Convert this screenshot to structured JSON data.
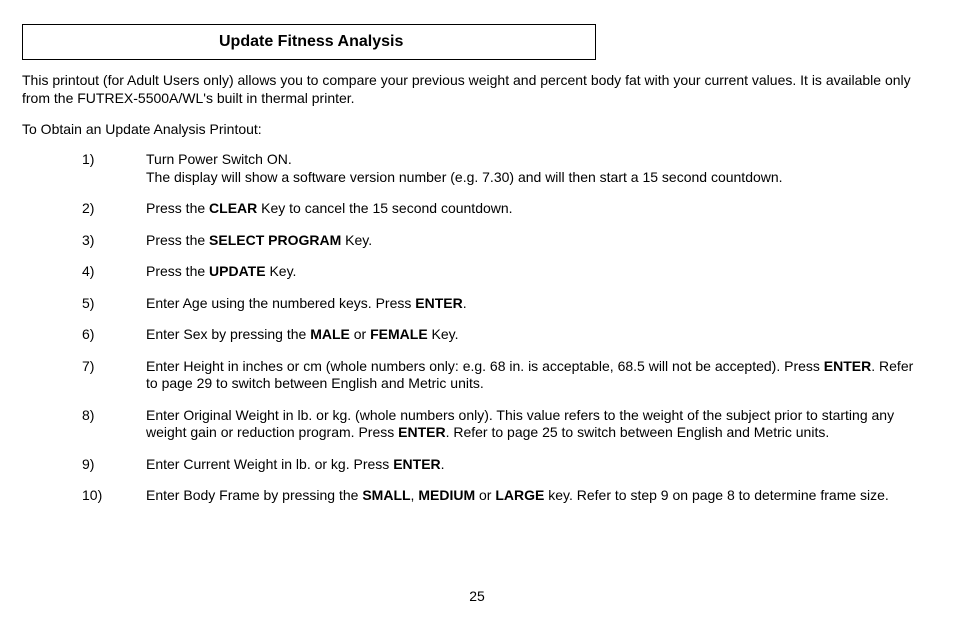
{
  "title": "Update Fitness Analysis",
  "intro": "This printout (for Adult Users only) allows you to compare your previous weight and percent body fat with your current values.  It is available only from the FUTREX-5500A/WL's built in thermal printer.",
  "subhead": "To Obtain an Update Analysis Printout:",
  "steps": [
    {
      "n": "1)",
      "segments": [
        {
          "t": "Turn Power Switch ON."
        },
        {
          "br": true
        },
        {
          "t": "The display will show a software version number (e.g. 7.30) and will then start a 15 second countdown."
        }
      ]
    },
    {
      "n": "2)",
      "segments": [
        {
          "t": "Press the "
        },
        {
          "t": "CLEAR",
          "b": true
        },
        {
          "t": " Key to cancel the 15 second countdown."
        }
      ]
    },
    {
      "n": "3)",
      "segments": [
        {
          "t": "Press the "
        },
        {
          "t": "SELECT PROGRAM",
          "b": true
        },
        {
          "t": " Key."
        }
      ]
    },
    {
      "n": "4)",
      "segments": [
        {
          "t": "Press the "
        },
        {
          "t": "UPDATE",
          "b": true
        },
        {
          "t": " Key."
        }
      ]
    },
    {
      "n": "5)",
      "segments": [
        {
          "t": "Enter Age using the numbered keys.  Press "
        },
        {
          "t": "ENTER",
          "b": true
        },
        {
          "t": "."
        }
      ]
    },
    {
      "n": "6)",
      "segments": [
        {
          "t": "Enter Sex by pressing the "
        },
        {
          "t": "MALE",
          "b": true
        },
        {
          "t": " or "
        },
        {
          "t": "FEMALE",
          "b": true
        },
        {
          "t": " Key."
        }
      ]
    },
    {
      "n": "7)",
      "segments": [
        {
          "t": "Enter Height in inches or cm (whole numbers only: e.g. 68 in. is acceptable, 68.5 will not be accepted).  Press "
        },
        {
          "t": "ENTER",
          "b": true
        },
        {
          "t": ".  Refer to page 29 to switch between English and Metric units."
        }
      ]
    },
    {
      "n": "8)",
      "segments": [
        {
          "t": "Enter Original Weight in lb. or kg. (whole numbers only).  This value refers to the weight of the subject prior to starting any weight gain or reduction program.  Press "
        },
        {
          "t": "ENTER",
          "b": true
        },
        {
          "t": ".  Refer to page 25 to switch between English and Metric units."
        }
      ]
    },
    {
      "n": "9)",
      "segments": [
        {
          "t": "Enter Current Weight in lb. or kg.  Press "
        },
        {
          "t": "ENTER",
          "b": true
        },
        {
          "t": "."
        }
      ]
    },
    {
      "n": "10)",
      "segments": [
        {
          "t": "Enter Body Frame by pressing the "
        },
        {
          "t": "SMALL",
          "b": true
        },
        {
          "t": ", "
        },
        {
          "t": "MEDIUM",
          "b": true
        },
        {
          "t": " or "
        },
        {
          "t": "LARGE",
          "b": true
        },
        {
          "t": " key.  Refer to step 9 on page 8 to determine frame size."
        }
      ]
    }
  ],
  "page_number": "25"
}
